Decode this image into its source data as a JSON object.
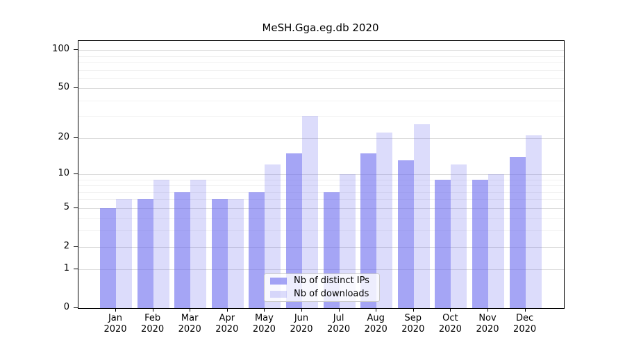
{
  "chart_data": {
    "type": "bar",
    "title": "MeSH.Gga.eg.db 2020",
    "categories": [
      "Jan 2020",
      "Feb 2020",
      "Mar 2020",
      "Apr 2020",
      "May 2020",
      "Jun 2020",
      "Jul 2020",
      "Aug 2020",
      "Sep 2020",
      "Oct 2020",
      "Nov 2020",
      "Dec 2020"
    ],
    "series": [
      {
        "name": "Nb of distinct IPs",
        "color": "#6666ee",
        "alpha": 0.59,
        "values": [
          5,
          6,
          7,
          6,
          7,
          15,
          7,
          15,
          13,
          9,
          9,
          14
        ]
      },
      {
        "name": "Nb of downloads",
        "color": "#6666ee",
        "alpha": 0.23,
        "values": [
          6,
          9,
          9,
          6,
          12,
          30,
          10,
          22,
          26,
          12,
          10,
          21
        ]
      }
    ],
    "y_axis": {
      "scale": "log1p",
      "ticks_major": [
        0,
        1,
        2,
        5,
        10,
        20,
        50,
        100
      ],
      "ticks_minor": [
        3,
        4,
        6,
        7,
        8,
        9,
        30,
        40,
        60,
        70,
        80,
        90
      ],
      "top_value": 118,
      "ylim": [
        0,
        118
      ]
    },
    "grid": {
      "major_color": "#dcdcdc",
      "minor_color": "#f1f1f1",
      "horizontal_only": true
    },
    "legend": {
      "position": "inside-bottom-center"
    },
    "axis_color": "#000000"
  }
}
